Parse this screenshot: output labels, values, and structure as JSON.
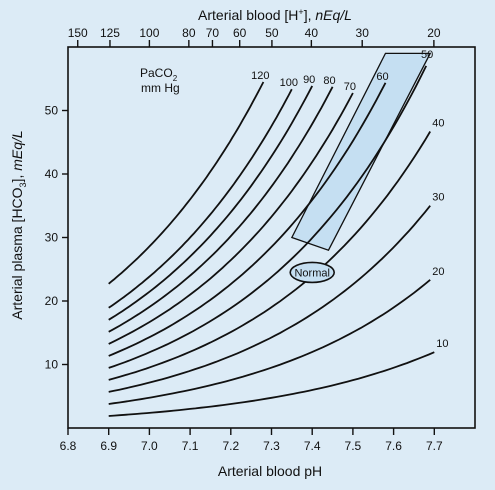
{
  "chart_data": {
    "type": "line",
    "title": "",
    "xlabel": "Arterial blood pH",
    "ylabel_main": "Arterial plasma [HCO",
    "ylabel_sub": "3",
    "ylabel_rest": "], ",
    "ylabel_unit": "mEq/L",
    "top_axis_label_main": "Arterial blood [H",
    "top_axis_label_sup": "+",
    "top_axis_label_rest": "], ",
    "top_axis_label_unit": "nEq/L",
    "xlim": [
      6.8,
      7.8
    ],
    "ylim": [
      0,
      60
    ],
    "x_ticks": [
      "6.8",
      "6.9",
      "7.0",
      "7.1",
      "7.2",
      "7.3",
      "7.4",
      "7.5",
      "7.6",
      "7.7"
    ],
    "y_ticks": [
      "10",
      "20",
      "30",
      "40",
      "50"
    ],
    "top_ticks": [
      "150",
      "125",
      "100",
      "80",
      "70",
      "60",
      "50",
      "40",
      "30",
      "20"
    ],
    "isobar_legend_line1": "PaCO",
    "isobar_legend_sub": "2",
    "isobar_legend_line2": "mm Hg",
    "series": [
      {
        "name": "10",
        "pco2": 10
      },
      {
        "name": "20",
        "pco2": 20
      },
      {
        "name": "30",
        "pco2": 30
      },
      {
        "name": "40",
        "pco2": 40
      },
      {
        "name": "50",
        "pco2": 50
      },
      {
        "name": "60",
        "pco2": 60
      },
      {
        "name": "70",
        "pco2": 70
      },
      {
        "name": "80",
        "pco2": 80
      },
      {
        "name": "90",
        "pco2": 90
      },
      {
        "name": "100",
        "pco2": 100
      },
      {
        "name": "120",
        "pco2": 120
      }
    ],
    "x_start": 6.9,
    "series_ends": [
      {
        "pco2": 10,
        "x_end": 7.7
      },
      {
        "pco2": 20,
        "x_end": 7.69
      },
      {
        "pco2": 30,
        "x_end": 7.69
      },
      {
        "pco2": 40,
        "x_end": 7.69
      },
      {
        "pco2": 50,
        "x_end": 7.68
      },
      {
        "pco2": 60,
        "x_end": 7.58
      },
      {
        "pco2": 70,
        "x_end": 7.5
      },
      {
        "pco2": 80,
        "x_end": 7.45
      },
      {
        "pco2": 90,
        "x_end": 7.4
      },
      {
        "pco2": 100,
        "x_end": 7.35
      },
      {
        "pco2": 120,
        "x_end": 7.28
      }
    ],
    "normal_label": "Normal",
    "normal_center": {
      "ph": 7.4,
      "hco3": 24.5
    },
    "normal_region": {
      "ph_min": 7.35,
      "ph_max": 7.45,
      "hco3_min": 23,
      "hco3_max": 26
    },
    "shaded_band": [
      [
        7.35,
        30
      ],
      [
        7.44,
        28
      ],
      [
        7.69,
        59
      ],
      [
        7.58,
        59
      ]
    ],
    "colors": {
      "background": "#dcebf6",
      "band_fill": "#c5dff2",
      "ellipse_fill": "#c5dff2",
      "line": "#111111"
    }
  }
}
